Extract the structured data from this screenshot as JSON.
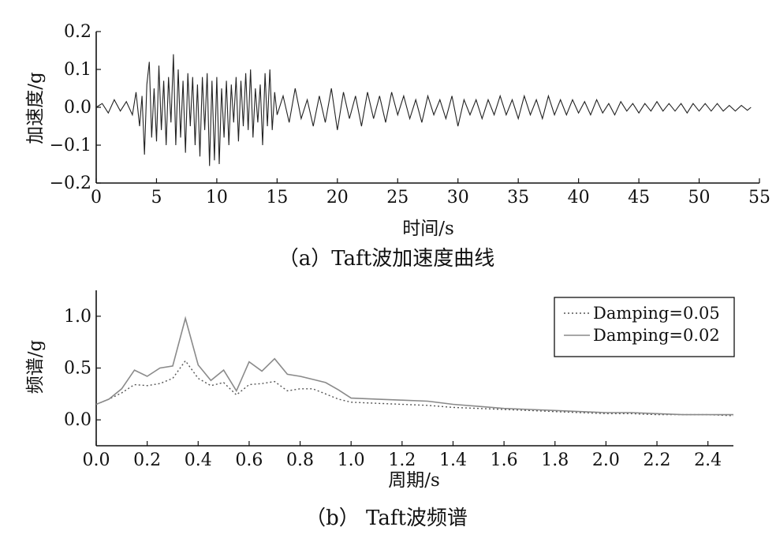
{
  "chart_data": [
    {
      "type": "line",
      "title": "",
      "caption": "（a）Taft波加速度曲线",
      "xlabel": "时间/s",
      "ylabel": "加速度/g",
      "xlim": [
        0,
        55
      ],
      "ylim": [
        -0.2,
        0.2
      ],
      "x_ticks": [
        0,
        5,
        10,
        15,
        20,
        25,
        30,
        35,
        40,
        45,
        50,
        55
      ],
      "y_ticks": [
        -0.2,
        -0.1,
        0.0,
        0.1,
        0.2
      ],
      "x_tick_labels": [
        "0",
        "5",
        "10",
        "15",
        "20",
        "25",
        "30",
        "35",
        "40",
        "45",
        "50",
        "55"
      ],
      "y_tick_labels": [
        "−0.2",
        "−0.1",
        "0.0",
        "0.1",
        "0.2"
      ],
      "grid": false,
      "color": "#222222",
      "series": [
        {
          "x": [
            0,
            0.5,
            1,
            1.5,
            2,
            2.5,
            3,
            3.3,
            3.6,
            3.8,
            4.0,
            4.2,
            4.4,
            4.6,
            4.8,
            5.0,
            5.2,
            5.4,
            5.6,
            5.8,
            6.0,
            6.2,
            6.4,
            6.6,
            6.8,
            7.0,
            7.2,
            7.4,
            7.6,
            7.8,
            8.0,
            8.2,
            8.4,
            8.6,
            8.8,
            9.0,
            9.2,
            9.4,
            9.6,
            9.8,
            10.0,
            10.2,
            10.4,
            10.6,
            10.8,
            11.0,
            11.2,
            11.4,
            11.6,
            11.8,
            12.0,
            12.2,
            12.4,
            12.6,
            12.8,
            13.0,
            13.2,
            13.4,
            13.6,
            13.8,
            14.0,
            14.2,
            14.4,
            14.6,
            14.8,
            15.0,
            15.5,
            16.0,
            16.5,
            17.0,
            17.5,
            18.0,
            18.5,
            19.0,
            19.5,
            20.0,
            20.5,
            21.0,
            21.5,
            22.0,
            22.5,
            23.0,
            23.5,
            24.0,
            24.5,
            25.0,
            25.5,
            26.0,
            26.5,
            27.0,
            27.5,
            28.0,
            28.5,
            29.0,
            29.5,
            30.0,
            30.5,
            31.0,
            31.5,
            32.0,
            32.5,
            33.0,
            33.5,
            34.0,
            34.5,
            35.0,
            35.5,
            36.0,
            36.5,
            37.0,
            37.5,
            38.0,
            38.5,
            39.0,
            39.5,
            40.0,
            40.5,
            41.0,
            41.5,
            42.0,
            42.5,
            43.0,
            43.5,
            44.0,
            44.5,
            45.0,
            45.5,
            46.0,
            46.5,
            47.0,
            47.5,
            48.0,
            48.5,
            49.0,
            49.5,
            50.0,
            50.5,
            51.0,
            51.5,
            52.0,
            52.5,
            53.0,
            53.5,
            54.0,
            54.3
          ],
          "values": [
            0.0,
            0.01,
            -0.015,
            0.02,
            -0.01,
            0.015,
            -0.02,
            0.04,
            -0.05,
            0.03,
            -0.125,
            0.06,
            0.12,
            -0.08,
            0.05,
            -0.09,
            0.11,
            -0.06,
            0.07,
            -0.1,
            0.08,
            -0.04,
            0.14,
            -0.1,
            0.1,
            -0.08,
            0.07,
            -0.12,
            0.09,
            -0.05,
            0.08,
            -0.1,
            0.06,
            -0.13,
            0.08,
            -0.06,
            0.09,
            -0.155,
            0.07,
            -0.14,
            0.08,
            -0.15,
            0.05,
            -0.08,
            0.07,
            -0.1,
            0.06,
            -0.04,
            0.08,
            -0.09,
            0.07,
            -0.05,
            0.09,
            -0.06,
            0.1,
            -0.08,
            0.05,
            -0.04,
            0.06,
            -0.1,
            0.09,
            -0.05,
            0.1,
            -0.06,
            0.04,
            -0.02,
            0.03,
            -0.04,
            0.05,
            -0.03,
            0.02,
            -0.05,
            0.03,
            -0.04,
            0.05,
            -0.06,
            0.04,
            -0.03,
            0.03,
            -0.05,
            0.04,
            -0.03,
            0.03,
            -0.04,
            0.04,
            -0.02,
            0.03,
            -0.03,
            0.02,
            -0.04,
            0.03,
            -0.02,
            0.02,
            -0.03,
            0.03,
            -0.05,
            0.02,
            -0.02,
            0.02,
            -0.03,
            0.02,
            -0.02,
            0.03,
            -0.02,
            0.02,
            -0.03,
            0.03,
            -0.02,
            0.02,
            -0.03,
            0.03,
            -0.02,
            0.02,
            -0.02,
            0.02,
            -0.015,
            0.015,
            -0.02,
            0.02,
            -0.015,
            0.01,
            -0.02,
            0.015,
            -0.01,
            0.01,
            -0.015,
            0.01,
            -0.01,
            0.015,
            -0.01,
            0.01,
            -0.01,
            0.01,
            -0.015,
            0.01,
            -0.01,
            0.01,
            -0.01,
            0.01,
            -0.01,
            0.005,
            -0.01,
            0.005,
            -0.008,
            0.0
          ]
        }
      ]
    },
    {
      "type": "line",
      "title": "",
      "caption": "（b） Taft波频谱",
      "xlabel": "周期/s",
      "ylabel": "频谱/g",
      "xlim": [
        0,
        2.5
      ],
      "ylim": [
        -0.25,
        1.25
      ],
      "x_ticks": [
        0.0,
        0.2,
        0.4,
        0.6,
        0.8,
        1.0,
        1.2,
        1.4,
        1.6,
        1.8,
        2.0,
        2.2,
        2.4
      ],
      "y_ticks": [
        0.0,
        0.5,
        1.0
      ],
      "x_tick_labels": [
        "0.0",
        "0.2",
        "0.4",
        "0.6",
        "0.8",
        "1.0",
        "1.2",
        "1.4",
        "1.6",
        "1.8",
        "2.0",
        "2.2",
        "2.4"
      ],
      "y_tick_labels": [
        "0.0",
        "0.5",
        "1.0"
      ],
      "grid": false,
      "legend_position": "top-right",
      "x": [
        0.0,
        0.05,
        0.1,
        0.15,
        0.2,
        0.25,
        0.3,
        0.35,
        0.4,
        0.45,
        0.5,
        0.55,
        0.6,
        0.65,
        0.7,
        0.75,
        0.8,
        0.85,
        0.9,
        0.95,
        1.0,
        1.1,
        1.2,
        1.3,
        1.4,
        1.5,
        1.6,
        1.7,
        1.8,
        1.9,
        2.0,
        2.1,
        2.2,
        2.3,
        2.4,
        2.5
      ],
      "series": [
        {
          "name": "Damping=0.05",
          "style": "dotted",
          "color": "#555555",
          "values": [
            0.15,
            0.2,
            0.26,
            0.34,
            0.33,
            0.35,
            0.4,
            0.57,
            0.4,
            0.33,
            0.36,
            0.24,
            0.34,
            0.35,
            0.37,
            0.28,
            0.3,
            0.3,
            0.25,
            0.2,
            0.17,
            0.16,
            0.15,
            0.14,
            0.12,
            0.11,
            0.1,
            0.09,
            0.08,
            0.07,
            0.06,
            0.06,
            0.05,
            0.05,
            0.05,
            0.04
          ]
        },
        {
          "name": "Damping=0.02",
          "style": "solid",
          "color": "#8a8a8a",
          "values": [
            0.15,
            0.2,
            0.3,
            0.48,
            0.42,
            0.5,
            0.52,
            0.98,
            0.53,
            0.38,
            0.48,
            0.28,
            0.56,
            0.47,
            0.59,
            0.44,
            0.42,
            0.39,
            0.36,
            0.29,
            0.21,
            0.2,
            0.19,
            0.18,
            0.15,
            0.13,
            0.11,
            0.1,
            0.09,
            0.08,
            0.07,
            0.07,
            0.06,
            0.05,
            0.05,
            0.05
          ]
        }
      ]
    }
  ]
}
